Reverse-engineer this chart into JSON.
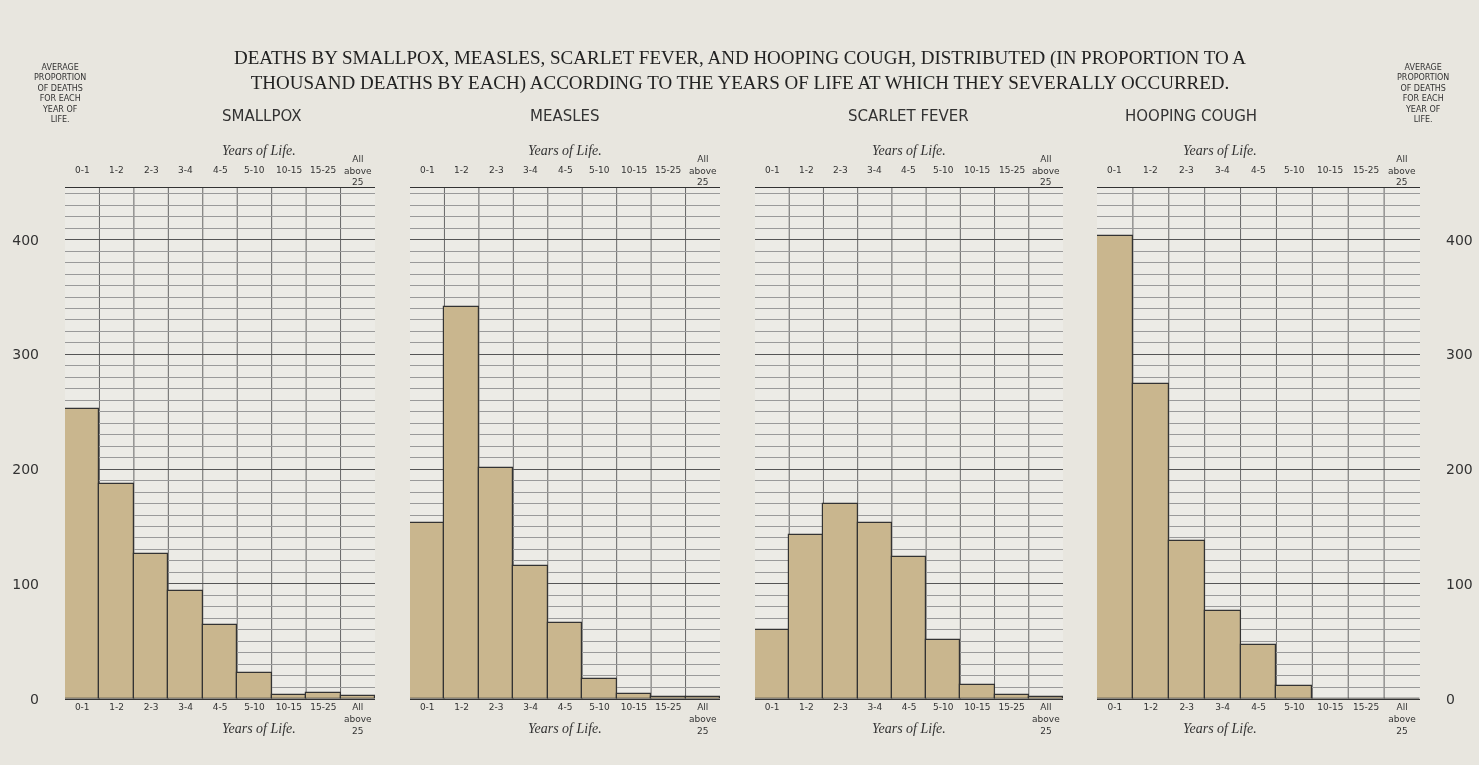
{
  "chart_data": [
    {
      "type": "bar",
      "title": "DEATHS BY SMALLPOX, MEASLES, SCARLET FEVER, AND HOOPING COUGH, DISTRIBUTED (IN PROPORTION TO A THOUSAND DEATHS BY EACH) ACCORDING TO THE YEARS OF LIFE AT WHICH THEY SEVERALLY OCCURRED.",
      "subtitle": "SMALLPOX",
      "xlabel": "Years of Life.",
      "x2label": "Years of Life.",
      "ylabel": "AVERAGE PROPORTION OF DEATHS FOR EACH YEAR OF LIFE.",
      "categories": [
        "0-1",
        "1-2",
        "2-3",
        "3-4",
        "4-5",
        "5-10",
        "10-15",
        "15-25",
        "All above 25"
      ],
      "values": [
        252,
        187,
        126,
        94,
        64,
        22,
        3,
        5,
        2
      ],
      "color": "#c9b68e",
      "ylim": [
        0,
        445
      ],
      "yticks": [
        0,
        100,
        200,
        300,
        400
      ],
      "grid": true
    },
    {
      "type": "bar",
      "subtitle": "MEASLES",
      "xlabel": "Years of Life.",
      "x2label": "Years of Life.",
      "categories": [
        "0-1",
        "1-2",
        "2-3",
        "3-4",
        "4-5",
        "5-10",
        "10-15",
        "15-25",
        "All above 25"
      ],
      "values": [
        153,
        341,
        201,
        116,
        66,
        17,
        4,
        1,
        1
      ],
      "color": "#c9b68e",
      "ylim": [
        0,
        445
      ],
      "yticks": [
        0,
        100,
        200,
        300,
        400
      ],
      "grid": true,
      "tick_labels": "x"
    },
    {
      "type": "bar",
      "subtitle": "SCARLET FEVER",
      "xlabel": "Years of Life.",
      "x2label": "Years of Life.",
      "categories": [
        "0-1",
        "1-2",
        "2-3",
        "3-4",
        "4-5",
        "5-10",
        "10-15",
        "15-25",
        "All above 25"
      ],
      "values": [
        60,
        143,
        170,
        153,
        123,
        51,
        12,
        3,
        1
      ],
      "color": "#c9b68e",
      "ylim": [
        0,
        445
      ],
      "yticks": [
        0,
        100,
        200,
        300,
        400
      ],
      "grid": true,
      "tick_labels": "x"
    },
    {
      "type": "bar",
      "subtitle": "HOOPING COUGH",
      "xlabel": "Years of Life.",
      "x2label": "Years of Life.",
      "ylabel": "AVERAGE PROPORTION OF DEATHS FOR EACH YEAR OF LIFE.",
      "categories": [
        "0-1",
        "1-2",
        "2-3",
        "3-4",
        "4-5",
        "5-10",
        "10-15",
        "15-25",
        "All above 25"
      ],
      "values": [
        403,
        274,
        137,
        76,
        47,
        11,
        0,
        0,
        0
      ],
      "color": "#c9b68e",
      "ylim": [
        0,
        445
      ],
      "yticks": [
        0,
        100,
        200,
        300,
        400
      ],
      "grid": true
    }
  ]
}
